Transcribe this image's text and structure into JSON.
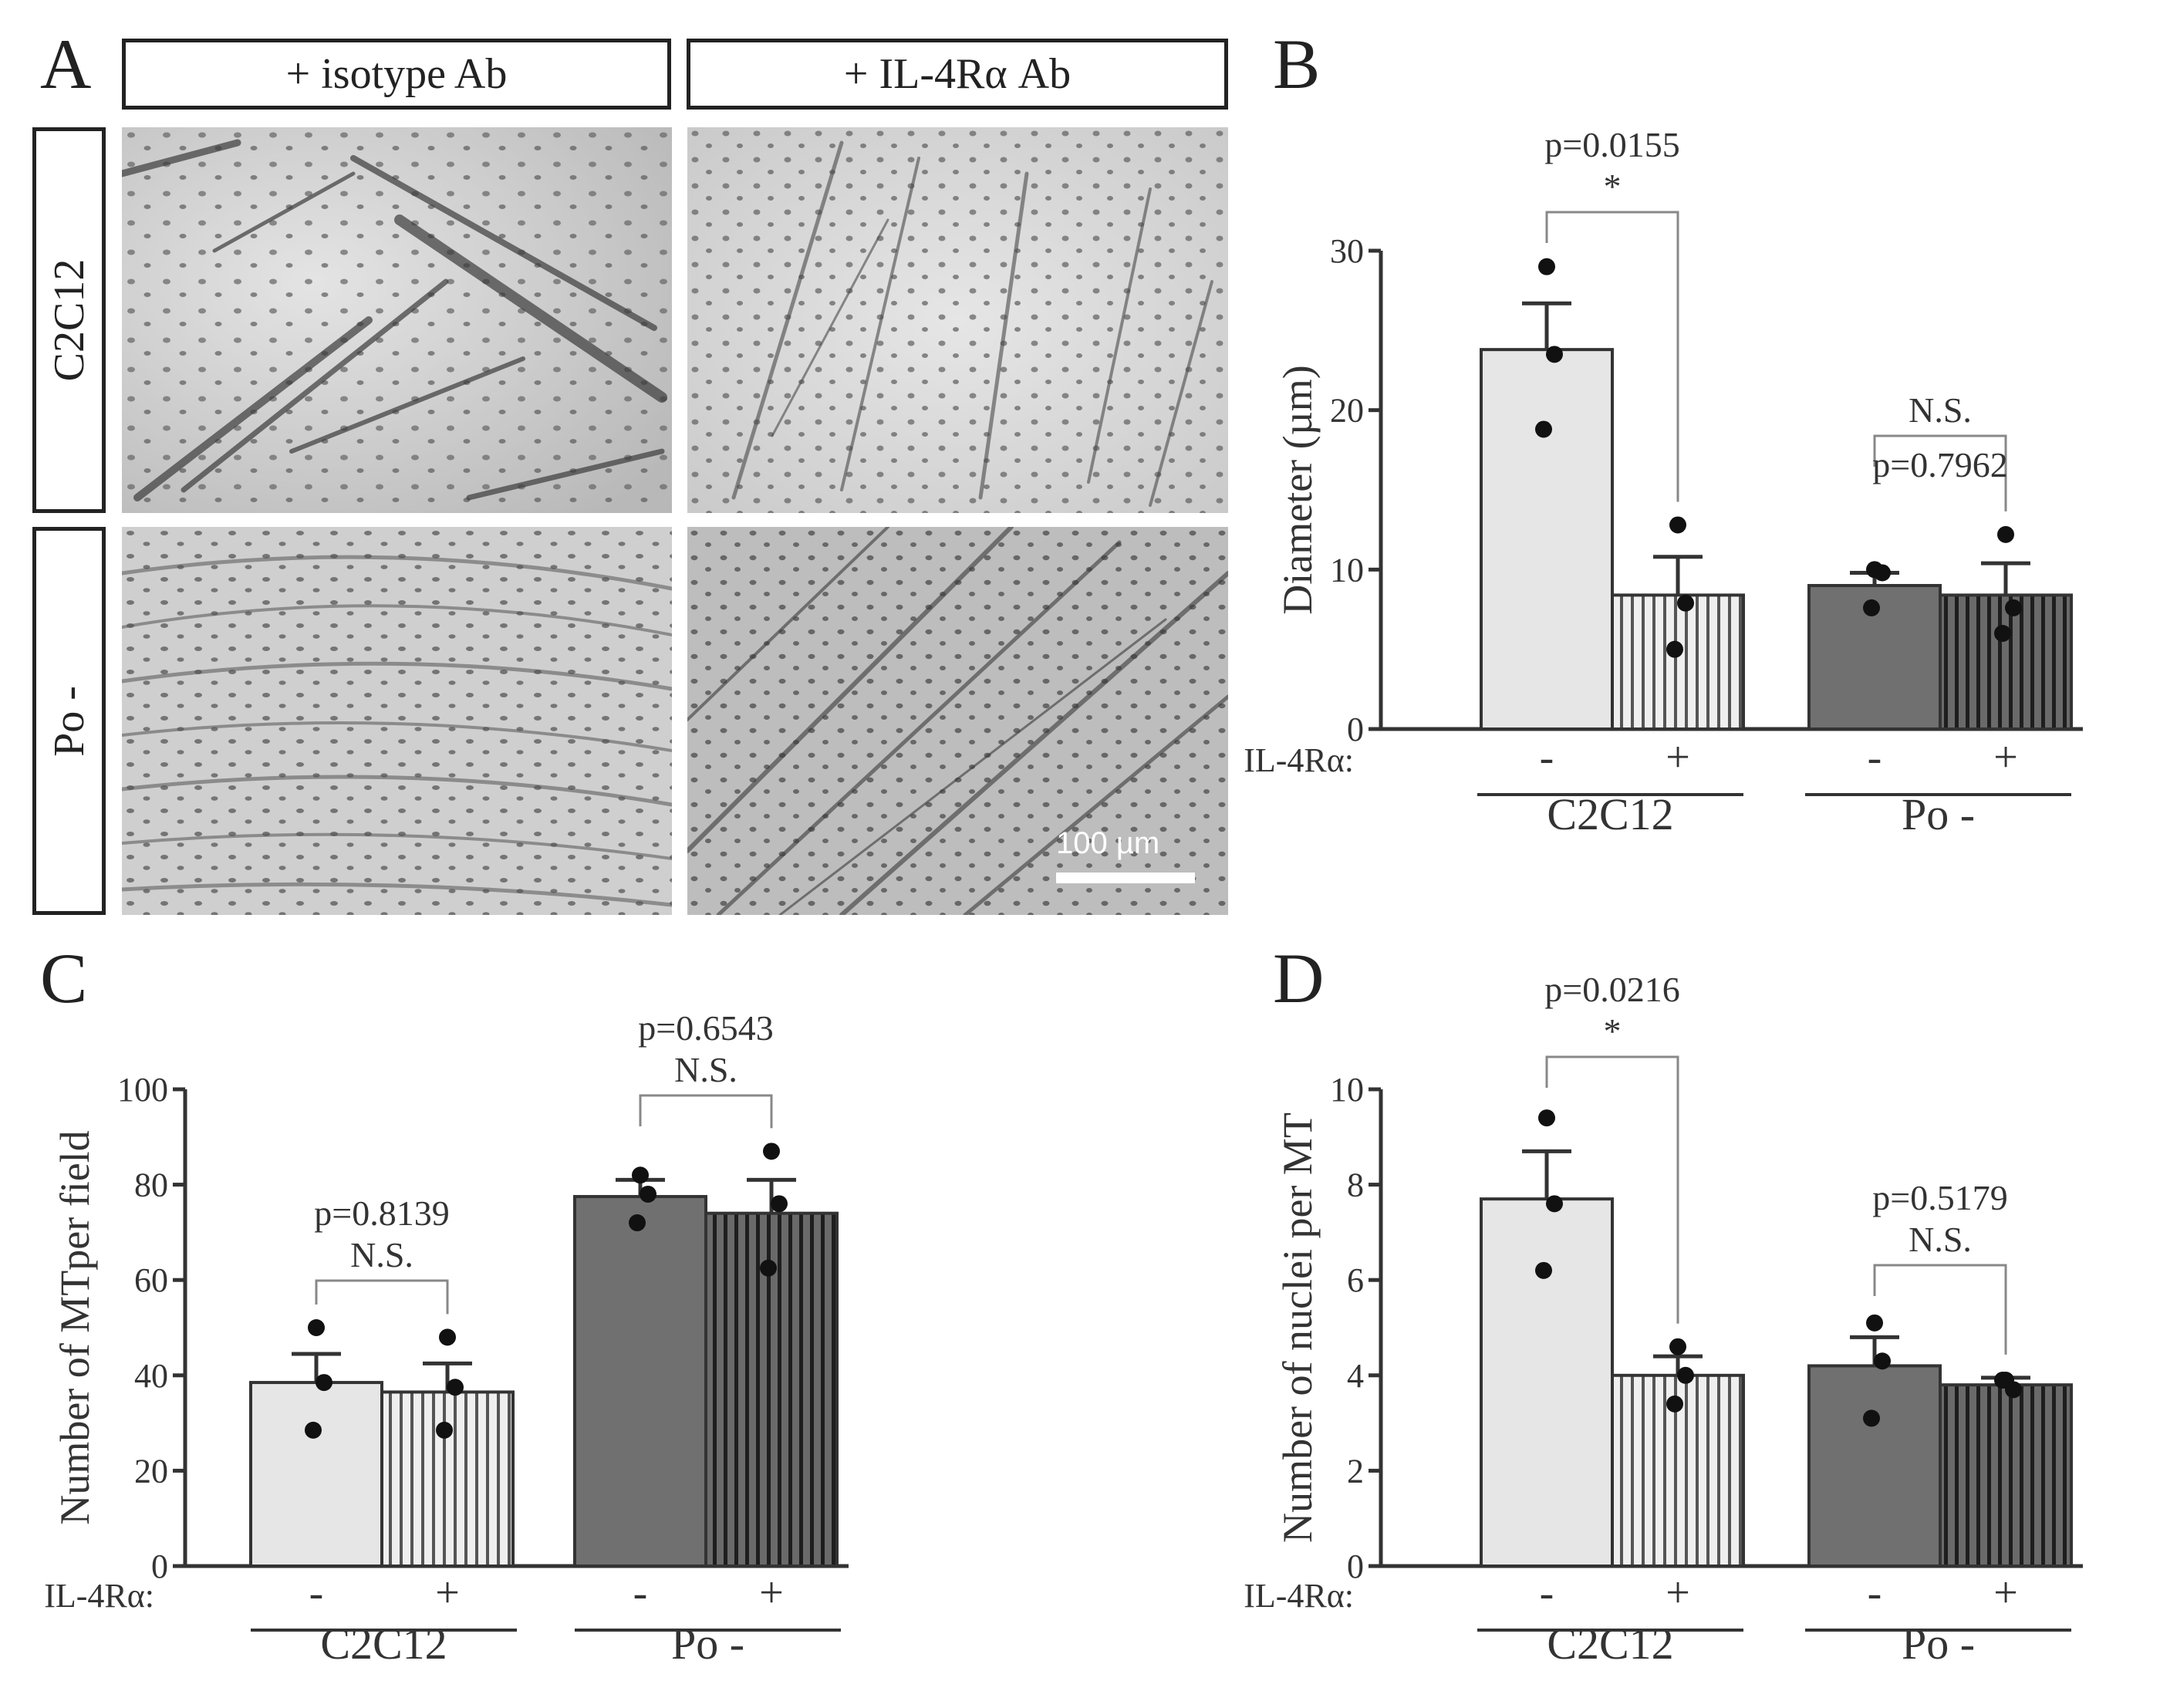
{
  "panel_a": {
    "letter": "A",
    "col_headers": [
      "+ isotype Ab",
      "+ IL-4Rα Ab"
    ],
    "row_headers": [
      "C2C12",
      "Po -"
    ],
    "scale_bar": "100 µm",
    "images": [
      {
        "row": "C2C12",
        "col": "+ isotype Ab",
        "content": "micrograph"
      },
      {
        "row": "C2C12",
        "col": "+ IL-4Rα Ab",
        "content": "micrograph"
      },
      {
        "row": "Po -",
        "col": "+ isotype Ab",
        "content": "micrograph"
      },
      {
        "row": "Po -",
        "col": "+ IL-4Rα Ab",
        "content": "micrograph"
      }
    ]
  },
  "colors": {
    "c2c12_bar": "#e6e6e6",
    "po_bar": "#707070",
    "axis": "#333333",
    "stripe_light": "#555555",
    "stripe_dark": "#1e1e1e"
  },
  "chart_data": [
    {
      "panel": "B",
      "type": "bar",
      "ylabel": "Diameter (µm)",
      "ylim": [
        0,
        30
      ],
      "yticks": [
        0,
        10,
        20,
        30
      ],
      "treatment_label": "IL-4Rα:",
      "groups": [
        "C2C12",
        "Po -"
      ],
      "categories": [
        "-",
        "+",
        "-",
        "+"
      ],
      "values": [
        23.8,
        8.4,
        9.0,
        8.4
      ],
      "errors": [
        2.9,
        2.4,
        0.8,
        2.0
      ],
      "points": [
        [
          29,
          23.5,
          18.8
        ],
        [
          12.8,
          7.9,
          5
        ],
        [
          10,
          9.8,
          7.6
        ],
        [
          12.2,
          7.6,
          6
        ]
      ],
      "annotations": [
        {
          "p": "p=0.0155",
          "sig": "*"
        },
        {
          "p": "p=0.7962",
          "sig": "N.S."
        }
      ]
    },
    {
      "panel": "C",
      "type": "bar",
      "ylabel": "Number of MTper field",
      "ylim": [
        0,
        100
      ],
      "yticks": [
        0,
        20,
        40,
        60,
        80,
        100
      ],
      "treatment_label": "IL-4Rα:",
      "groups": [
        "C2C12",
        "Po -"
      ],
      "categories": [
        "-",
        "+",
        "-",
        "+"
      ],
      "values": [
        38.5,
        36.5,
        77.5,
        74.0
      ],
      "errors": [
        6.0,
        6.0,
        3.5,
        7.0
      ],
      "points": [
        [
          50,
          38.5,
          28.5
        ],
        [
          48,
          37.5,
          28.5
        ],
        [
          82,
          78,
          72
        ],
        [
          87,
          76,
          62.5
        ]
      ],
      "annotations": [
        {
          "p": "p=0.8139",
          "sig": "N.S."
        },
        {
          "p": "p=0.6543",
          "sig": "N.S."
        }
      ]
    },
    {
      "panel": "D",
      "type": "bar",
      "ylabel": "Number of nuclei per MT",
      "ylim": [
        0,
        10
      ],
      "yticks": [
        0,
        2,
        4,
        6,
        8,
        10
      ],
      "treatment_label": "IL-4Rα:",
      "groups": [
        "C2C12",
        "Po -"
      ],
      "categories": [
        "-",
        "+",
        "-",
        "+"
      ],
      "values": [
        7.7,
        4.0,
        4.2,
        3.8
      ],
      "errors": [
        1.0,
        0.4,
        0.6,
        0.15
      ],
      "points": [
        [
          9.4,
          7.6,
          6.2
        ],
        [
          4.6,
          4.0,
          3.4
        ],
        [
          5.1,
          4.3,
          3.1
        ],
        [
          3.9,
          3.7,
          3.9
        ]
      ],
      "annotations": [
        {
          "p": "p=0.0216",
          "sig": "*"
        },
        {
          "p": "p=0.5179",
          "sig": "N.S."
        }
      ]
    }
  ]
}
